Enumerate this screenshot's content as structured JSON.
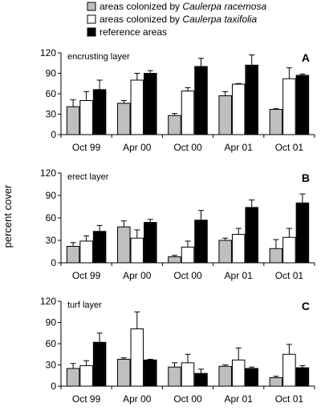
{
  "legend": {
    "items": [
      {
        "prefix": "areas colonized by ",
        "species": "Caulerpa racemosa",
        "color": "#bfbfbf"
      },
      {
        "prefix": "areas colonized by ",
        "species": "Caulerpa taxifolia",
        "color": "#ffffff"
      },
      {
        "prefix": "reference areas",
        "species": "",
        "color": "#000000"
      }
    ]
  },
  "ylabel": "percent cover",
  "chart_data": [
    {
      "type": "bar",
      "panel_letter": "A",
      "title": "encrusting layer",
      "categories": [
        "Oct 99",
        "Apr 00",
        "Oct 00",
        "Apr 01",
        "Oct 01"
      ],
      "ylim": [
        0,
        120
      ],
      "yticks": [
        0,
        30,
        60,
        90,
        120
      ],
      "series": [
        {
          "name": "areas colonized by Caulerpa racemosa",
          "values": [
            41,
            46,
            28,
            57,
            37
          ],
          "errors": [
            10,
            4,
            3,
            6,
            1
          ]
        },
        {
          "name": "areas colonized by Caulerpa taxifolia",
          "values": [
            50,
            80,
            64,
            74,
            82
          ],
          "errors": [
            13,
            10,
            5,
            1,
            16
          ]
        },
        {
          "name": "reference areas",
          "values": [
            66,
            90,
            100,
            102,
            87
          ],
          "errors": [
            14,
            4,
            12,
            15,
            2
          ]
        }
      ]
    },
    {
      "type": "bar",
      "panel_letter": "B",
      "title": "erect layer",
      "categories": [
        "Oct 99",
        "Apr 00",
        "Oct 00",
        "Apr 01",
        "Oct 01"
      ],
      "ylim": [
        0,
        120
      ],
      "yticks": [
        0,
        30,
        60,
        90,
        120
      ],
      "series": [
        {
          "name": "areas colonized by Caulerpa racemosa",
          "values": [
            22,
            48,
            8,
            30,
            19
          ],
          "errors": [
            5,
            8,
            2,
            3,
            12
          ]
        },
        {
          "name": "areas colonized by Caulerpa taxifolia",
          "values": [
            29,
            33,
            21,
            38,
            34
          ],
          "errors": [
            7,
            11,
            8,
            8,
            12
          ]
        },
        {
          "name": "reference areas",
          "values": [
            42,
            54,
            57,
            74,
            80
          ],
          "errors": [
            8,
            4,
            13,
            10,
            12
          ]
        }
      ]
    },
    {
      "type": "bar",
      "panel_letter": "C",
      "title": "turf layer",
      "categories": [
        "Oct 99",
        "Apr 00",
        "Oct 00",
        "Apr 01",
        "Oct 01"
      ],
      "ylim": [
        0,
        120
      ],
      "yticks": [
        0,
        30,
        60,
        90,
        120
      ],
      "series": [
        {
          "name": "areas colonized by Caulerpa racemosa",
          "values": [
            25,
            38,
            27,
            28,
            12
          ],
          "errors": [
            7,
            2,
            6,
            2,
            2
          ]
        },
        {
          "name": "areas colonized by Caulerpa taxifolia",
          "values": [
            29,
            81,
            33,
            37,
            45
          ],
          "errors": [
            7,
            24,
            12,
            17,
            14
          ]
        },
        {
          "name": "reference areas",
          "values": [
            62,
            37,
            18,
            25,
            26
          ],
          "errors": [
            13,
            1,
            6,
            2,
            3
          ]
        }
      ]
    }
  ]
}
